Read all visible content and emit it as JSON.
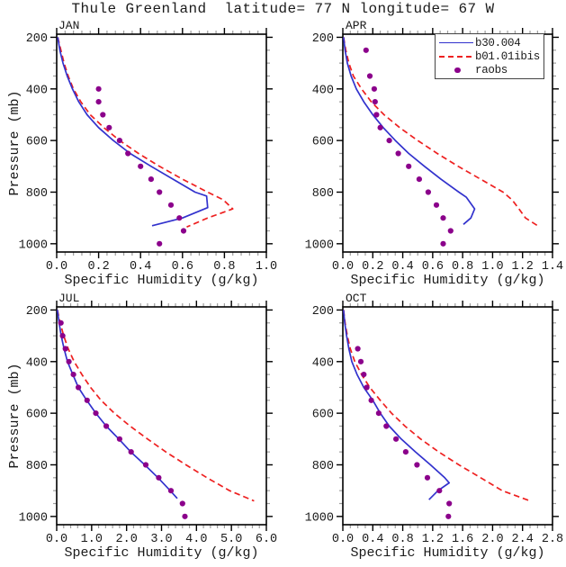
{
  "page_title": "Thule Greenland  latitude= 77 N longitude= 67 W",
  "station": {
    "name": "Thule Greenland",
    "latitude": "77 N",
    "longitude": "67 W"
  },
  "axis_titles": {
    "xlabel": "Specific Humidity (g/kg)",
    "ylabel": "Pressure (mb)"
  },
  "legend": {
    "position": "top-right inside APR panel",
    "items": [
      {
        "label": "b30.004",
        "marker": "solid-line",
        "color": "#3232cd"
      },
      {
        "label": "b01.01ibis",
        "marker": "dashed-line",
        "color": "#ee2020"
      },
      {
        "label": "raobs",
        "marker": "dot",
        "color": "#8B008B"
      }
    ]
  },
  "style": {
    "line_color_model1": "#3232cd",
    "line_color_model2": "#ee2020",
    "obs_dot_color": "#8B008B",
    "frame_color": "#000000",
    "minor_tick_color": "#9e9e9e",
    "text_color": "#1a1a1a",
    "background": "#ffffff",
    "grid": "off",
    "ticks": "outward on all four sides, mirrored"
  },
  "chart_data": [
    {
      "type": "line",
      "title": "JAN",
      "xlabel": "Specific Humidity (g/kg)",
      "ylabel": "Pressure (mb)",
      "xlim": [
        0.0,
        1.0
      ],
      "xticks": [
        0.0,
        0.2,
        0.4,
        0.6,
        0.8,
        1.0
      ],
      "xtick_labels": [
        "0.0",
        "0.2",
        "0.4",
        "0.6",
        "0.8",
        "1.0"
      ],
      "x_minor_divisions": 5,
      "ylim": [
        1032,
        188
      ],
      "yaxis_inverted": true,
      "yticks": [
        200,
        400,
        600,
        800,
        1000
      ],
      "ytick_labels": [
        "200",
        "400",
        "600",
        "800",
        "1000"
      ],
      "y_minor_step": 50,
      "series": [
        {
          "name": "b30.004",
          "style": "solid",
          "color": "#3232cd",
          "points": [
            [
              200,
              0.005
            ],
            [
              250,
              0.015
            ],
            [
              300,
              0.03
            ],
            [
              350,
              0.05
            ],
            [
              400,
              0.075
            ],
            [
              450,
              0.105
            ],
            [
              500,
              0.145
            ],
            [
              550,
              0.2
            ],
            [
              600,
              0.27
            ],
            [
              650,
              0.35
            ],
            [
              700,
              0.45
            ],
            [
              750,
              0.555
            ],
            [
              800,
              0.66
            ],
            [
              815,
              0.715
            ],
            [
              860,
              0.72
            ],
            [
              900,
              0.6
            ],
            [
              930,
              0.455
            ]
          ]
        },
        {
          "name": "b01.01ibis",
          "style": "dashed",
          "color": "#ee2020",
          "points": [
            [
              200,
              0.005
            ],
            [
              250,
              0.02
            ],
            [
              300,
              0.035
            ],
            [
              350,
              0.055
            ],
            [
              400,
              0.08
            ],
            [
              450,
              0.115
            ],
            [
              500,
              0.16
            ],
            [
              550,
              0.225
            ],
            [
              600,
              0.3
            ],
            [
              650,
              0.39
            ],
            [
              700,
              0.49
            ],
            [
              750,
              0.6
            ],
            [
              800,
              0.72
            ],
            [
              830,
              0.795
            ],
            [
              865,
              0.84
            ],
            [
              900,
              0.72
            ],
            [
              935,
              0.62
            ]
          ]
        },
        {
          "name": "raobs",
          "style": "scatter",
          "color": "#8B008B",
          "points": [
            [
              400,
              0.2
            ],
            [
              450,
              0.2
            ],
            [
              500,
              0.22
            ],
            [
              550,
              0.25
            ],
            [
              600,
              0.3
            ],
            [
              650,
              0.34
            ],
            [
              700,
              0.4
            ],
            [
              750,
              0.45
            ],
            [
              800,
              0.49
            ],
            [
              850,
              0.545
            ],
            [
              900,
              0.585
            ],
            [
              950,
              0.605
            ],
            [
              1000,
              0.49
            ]
          ]
        }
      ]
    },
    {
      "type": "line",
      "title": "APR",
      "xlabel": "Specific Humidity (g/kg)",
      "ylabel": "Pressure (mb)",
      "xlim": [
        0.0,
        1.4
      ],
      "xticks": [
        0.0,
        0.2,
        0.4,
        0.6,
        0.8,
        1.0,
        1.2,
        1.4
      ],
      "xtick_labels": [
        "0.0",
        "0.2",
        "0.4",
        "0.6",
        "0.8",
        "1.0",
        "1.2",
        "1.4"
      ],
      "x_minor_divisions": 4,
      "ylim": [
        1032,
        188
      ],
      "yaxis_inverted": true,
      "yticks": [
        200,
        400,
        600,
        800,
        1000
      ],
      "ytick_labels": [
        "200",
        "400",
        "600",
        "800",
        "1000"
      ],
      "y_minor_step": 50,
      "series": [
        {
          "name": "b30.004",
          "style": "solid",
          "color": "#3232cd",
          "points": [
            [
              200,
              0.005
            ],
            [
              250,
              0.015
            ],
            [
              300,
              0.03
            ],
            [
              350,
              0.055
            ],
            [
              400,
              0.09
            ],
            [
              450,
              0.14
            ],
            [
              500,
              0.2
            ],
            [
              550,
              0.27
            ],
            [
              600,
              0.35
            ],
            [
              650,
              0.44
            ],
            [
              700,
              0.545
            ],
            [
              750,
              0.655
            ],
            [
              800,
              0.775
            ],
            [
              820,
              0.825
            ],
            [
              865,
              0.88
            ],
            [
              900,
              0.855
            ],
            [
              925,
              0.805
            ]
          ]
        },
        {
          "name": "b01.01ibis",
          "style": "dashed",
          "color": "#ee2020",
          "points": [
            [
              200,
              0.005
            ],
            [
              250,
              0.02
            ],
            [
              300,
              0.04
            ],
            [
              350,
              0.07
            ],
            [
              400,
              0.125
            ],
            [
              450,
              0.19
            ],
            [
              500,
              0.275
            ],
            [
              550,
              0.38
            ],
            [
              600,
              0.5
            ],
            [
              650,
              0.63
            ],
            [
              700,
              0.77
            ],
            [
              750,
              0.92
            ],
            [
              800,
              1.07
            ],
            [
              830,
              1.13
            ],
            [
              860,
              1.17
            ],
            [
              900,
              1.22
            ],
            [
              930,
              1.3
            ]
          ]
        },
        {
          "name": "raobs",
          "style": "scatter",
          "color": "#8B008B",
          "points": [
            [
              250,
              0.155
            ],
            [
              350,
              0.18
            ],
            [
              400,
              0.21
            ],
            [
              450,
              0.215
            ],
            [
              500,
              0.225
            ],
            [
              550,
              0.25
            ],
            [
              600,
              0.31
            ],
            [
              650,
              0.37
            ],
            [
              700,
              0.44
            ],
            [
              750,
              0.51
            ],
            [
              800,
              0.57
            ],
            [
              850,
              0.625
            ],
            [
              900,
              0.67
            ],
            [
              950,
              0.72
            ],
            [
              1000,
              0.67
            ]
          ]
        }
      ]
    },
    {
      "type": "line",
      "title": "JUL",
      "xlabel": "Specific Humidity (g/kg)",
      "ylabel": "Pressure (mb)",
      "xlim": [
        0.0,
        6.0
      ],
      "xticks": [
        0.0,
        1.0,
        2.0,
        3.0,
        4.0,
        5.0,
        6.0
      ],
      "xtick_labels": [
        "0.0",
        "1.0",
        "2.0",
        "3.0",
        "4.0",
        "5.0",
        "6.0"
      ],
      "x_minor_divisions": 5,
      "ylim": [
        1032,
        188
      ],
      "yaxis_inverted": true,
      "yticks": [
        200,
        400,
        600,
        800,
        1000
      ],
      "ytick_labels": [
        "200",
        "400",
        "600",
        "800",
        "1000"
      ],
      "y_minor_step": 50,
      "series": [
        {
          "name": "b30.004",
          "style": "solid",
          "color": "#3232cd",
          "points": [
            [
              200,
              0.02
            ],
            [
              250,
              0.07
            ],
            [
              300,
              0.13
            ],
            [
              350,
              0.21
            ],
            [
              400,
              0.31
            ],
            [
              450,
              0.46
            ],
            [
              500,
              0.62
            ],
            [
              550,
              0.86
            ],
            [
              600,
              1.12
            ],
            [
              650,
              1.42
            ],
            [
              700,
              1.78
            ],
            [
              750,
              2.12
            ],
            [
              800,
              2.52
            ],
            [
              850,
              2.9
            ],
            [
              900,
              3.25
            ],
            [
              930,
              3.45
            ]
          ]
        },
        {
          "name": "b01.01ibis",
          "style": "dashed",
          "color": "#ee2020",
          "points": [
            [
              200,
              0.02
            ],
            [
              250,
              0.1
            ],
            [
              300,
              0.2
            ],
            [
              350,
              0.33
            ],
            [
              400,
              0.5
            ],
            [
              450,
              0.72
            ],
            [
              500,
              0.97
            ],
            [
              550,
              1.27
            ],
            [
              600,
              1.65
            ],
            [
              650,
              2.1
            ],
            [
              700,
              2.6
            ],
            [
              750,
              3.12
            ],
            [
              800,
              3.7
            ],
            [
              850,
              4.3
            ],
            [
              900,
              4.95
            ],
            [
              940,
              5.65
            ]
          ]
        },
        {
          "name": "raobs",
          "style": "scatter",
          "color": "#8B008B",
          "points": [
            [
              250,
              0.12
            ],
            [
              300,
              0.17
            ],
            [
              350,
              0.25
            ],
            [
              400,
              0.35
            ],
            [
              450,
              0.48
            ],
            [
              500,
              0.62
            ],
            [
              550,
              0.87
            ],
            [
              600,
              1.12
            ],
            [
              650,
              1.42
            ],
            [
              700,
              1.8
            ],
            [
              750,
              2.13
            ],
            [
              800,
              2.55
            ],
            [
              850,
              2.92
            ],
            [
              900,
              3.27
            ],
            [
              950,
              3.6
            ],
            [
              1000,
              3.67
            ]
          ]
        }
      ]
    },
    {
      "type": "line",
      "title": "OCT",
      "xlabel": "Specific Humidity (g/kg)",
      "ylabel": "Pressure (mb)",
      "xlim": [
        0.0,
        2.8
      ],
      "xticks": [
        0.0,
        0.4,
        0.8,
        1.2,
        1.6,
        2.0,
        2.4,
        2.8
      ],
      "xtick_labels": [
        "0.0",
        "0.4",
        "0.8",
        "1.2",
        "1.6",
        "2.0",
        "2.4",
        "2.8"
      ],
      "x_minor_divisions": 4,
      "ylim": [
        1032,
        188
      ],
      "yaxis_inverted": true,
      "yticks": [
        200,
        400,
        600,
        800,
        1000
      ],
      "ytick_labels": [
        "200",
        "400",
        "600",
        "800",
        "1000"
      ],
      "y_minor_step": 50,
      "series": [
        {
          "name": "b30.004",
          "style": "solid",
          "color": "#3232cd",
          "points": [
            [
              200,
              0.01
            ],
            [
              250,
              0.025
            ],
            [
              300,
              0.05
            ],
            [
              350,
              0.08
            ],
            [
              400,
              0.12
            ],
            [
              450,
              0.19
            ],
            [
              500,
              0.28
            ],
            [
              550,
              0.4
            ],
            [
              600,
              0.5
            ],
            [
              650,
              0.62
            ],
            [
              700,
              0.78
            ],
            [
              750,
              0.97
            ],
            [
              800,
              1.17
            ],
            [
              850,
              1.36
            ],
            [
              870,
              1.42
            ],
            [
              900,
              1.27
            ],
            [
              935,
              1.15
            ]
          ]
        },
        {
          "name": "b01.01ibis",
          "style": "dashed",
          "color": "#ee2020",
          "points": [
            [
              200,
              0.01
            ],
            [
              250,
              0.03
            ],
            [
              300,
              0.06
            ],
            [
              350,
              0.1
            ],
            [
              400,
              0.16
            ],
            [
              450,
              0.25
            ],
            [
              500,
              0.36
            ],
            [
              550,
              0.5
            ],
            [
              600,
              0.65
            ],
            [
              650,
              0.83
            ],
            [
              700,
              1.04
            ],
            [
              750,
              1.28
            ],
            [
              800,
              1.55
            ],
            [
              850,
              1.84
            ],
            [
              900,
              2.13
            ],
            [
              940,
              2.5
            ]
          ]
        },
        {
          "name": "raobs",
          "style": "scatter",
          "color": "#8B008B",
          "points": [
            [
              350,
              0.2
            ],
            [
              400,
              0.24
            ],
            [
              450,
              0.28
            ],
            [
              500,
              0.32
            ],
            [
              550,
              0.38
            ],
            [
              600,
              0.48
            ],
            [
              650,
              0.58
            ],
            [
              700,
              0.71
            ],
            [
              750,
              0.84
            ],
            [
              800,
              0.99
            ],
            [
              850,
              1.13
            ],
            [
              900,
              1.29
            ],
            [
              950,
              1.42
            ],
            [
              1000,
              1.41
            ]
          ]
        }
      ]
    }
  ]
}
